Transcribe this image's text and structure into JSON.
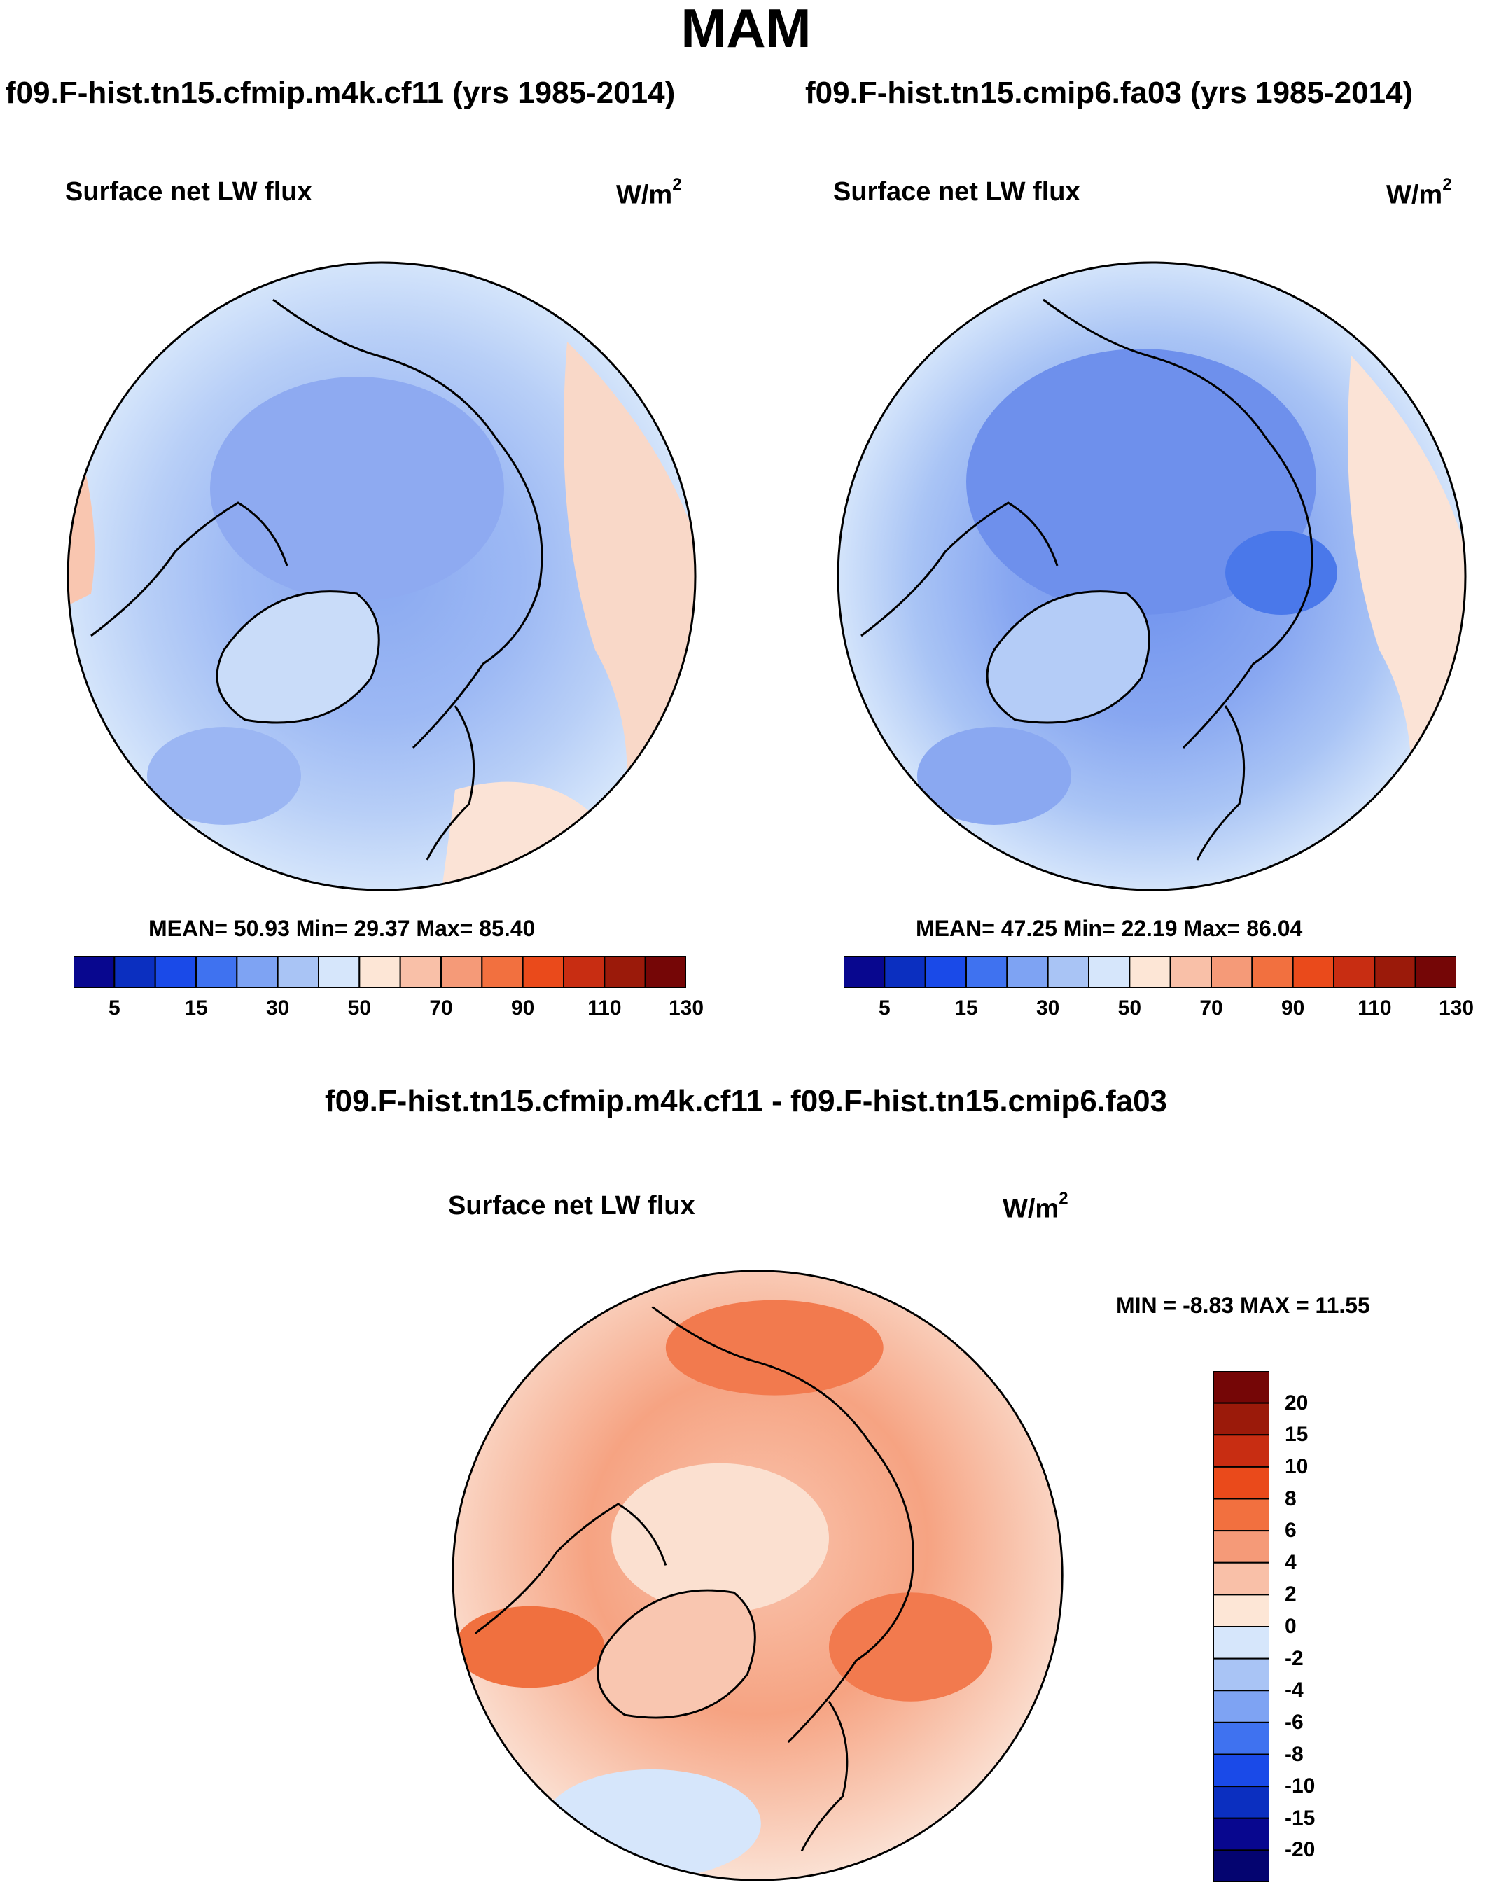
{
  "figure": {
    "season": "MAM",
    "colors": {
      "ocean_base": "#a9c4f5",
      "arctic_core": "#7d9ff0",
      "warm_fringe": "#f9c6b0",
      "coast": "#000000"
    }
  },
  "panels": [
    {
      "case_title": "f09.F-hist.tn15.cfmip.m4k.cf11 (yrs 1985-2014)",
      "variable": "Surface net LW flux",
      "units_base": "W/m",
      "units_exp": "2",
      "stats_text": "MEAN=  50.93  Min=  29.37  Max=  85.40",
      "stats": {
        "mean": 50.93,
        "min": 29.37,
        "max": 85.4
      }
    },
    {
      "case_title": "f09.F-hist.tn15.cmip6.fa03 (yrs 1985-2014)",
      "variable": "Surface net LW flux",
      "units_base": "W/m",
      "units_exp": "2",
      "stats_text": "MEAN=  47.25  Min=  22.19  Max=  86.04",
      "stats": {
        "mean": 47.25,
        "min": 22.19,
        "max": 86.04
      }
    }
  ],
  "abs_colorbar": {
    "levels": [
      "5",
      "15",
      "30",
      "50",
      "70",
      "90",
      "110",
      "130"
    ],
    "colors": [
      "#08078f",
      "#0b2fc0",
      "#1a4ae8",
      "#3f72f0",
      "#7ea3f3",
      "#a9c4f5",
      "#d6e6fb",
      "#fde6d6",
      "#f9c0a8",
      "#f59a78",
      "#f2703f",
      "#ea4a1b",
      "#c82d12",
      "#9b1a0a",
      "#750606"
    ]
  },
  "diff": {
    "title": "f09.F-hist.tn15.cfmip.m4k.cf11 - f09.F-hist.tn15.cmip6.fa03",
    "variable": "Surface net LW flux",
    "units_base": "W/m",
    "units_exp": "2",
    "minmax_text": "MIN =  -8.83 MAX =  11.55",
    "min": -8.83,
    "max": 11.55,
    "levels": [
      "20",
      "15",
      "10",
      "8",
      "6",
      "4",
      "2",
      "0",
      "-2",
      "-4",
      "-6",
      "-8",
      "-10",
      "-15",
      "-20"
    ],
    "colors": [
      "#750606",
      "#9b1a0a",
      "#c82d12",
      "#ea4a1b",
      "#f2703f",
      "#f59a78",
      "#f9c0a8",
      "#fde6d6",
      "#d6e6fb",
      "#a9c4f5",
      "#7ea3f3",
      "#3f72f0",
      "#1a4ae8",
      "#0b2fc0",
      "#08078f",
      "#040470"
    ]
  }
}
